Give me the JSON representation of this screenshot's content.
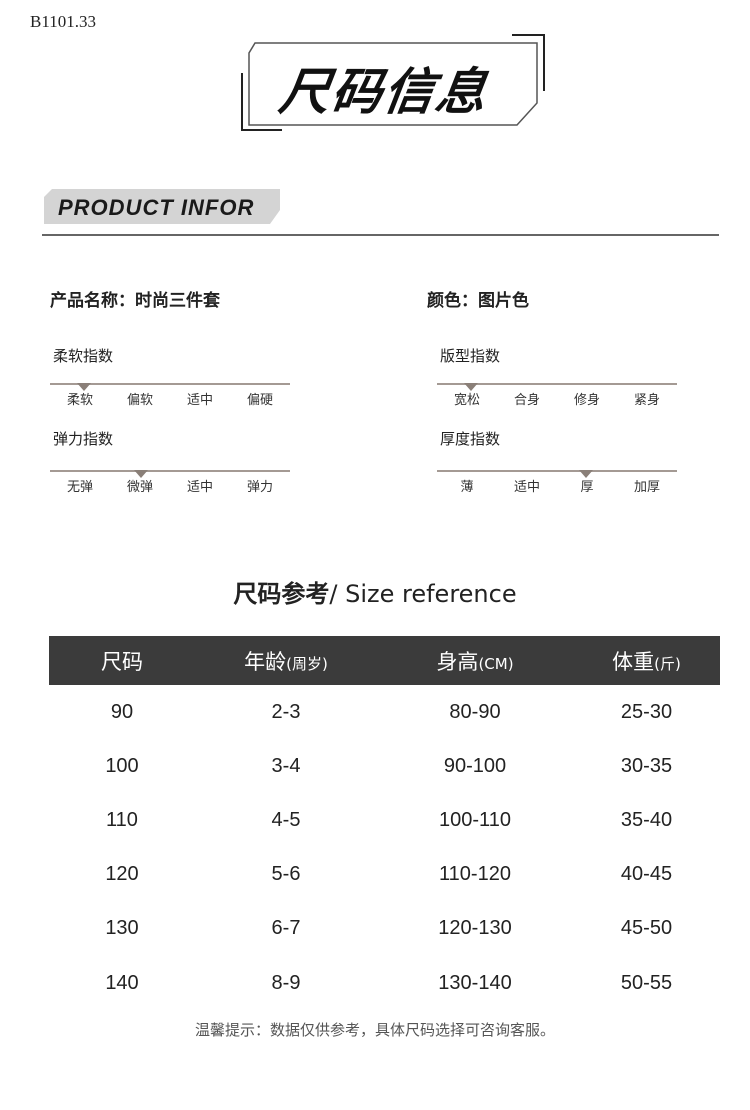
{
  "product_code": "B1101.33",
  "title": "尺码信息",
  "banner": "PRODUCT INFOR",
  "info": {
    "name_label": "产品名称：",
    "name_value": "时尚三件套",
    "color_label": "颜色：",
    "color_value": "图片色"
  },
  "indices": [
    {
      "title": "柔软指数",
      "options": [
        "柔软",
        "偏软",
        "适中",
        "偏硬"
      ],
      "selected": 0
    },
    {
      "title": "版型指数",
      "options": [
        "宽松",
        "合身",
        "修身",
        "紧身"
      ],
      "selected": 0
    },
    {
      "title": "弹力指数",
      "options": [
        "无弹",
        "微弹",
        "适中",
        "弹力"
      ],
      "selected": 1
    },
    {
      "title": "厚度指数",
      "options": [
        "薄",
        "适中",
        "厚",
        "加厚"
      ],
      "selected": 2
    }
  ],
  "size_reference": {
    "title_cn": "尺码参考",
    "title_sep": "/ ",
    "title_en": "Size reference"
  },
  "table": {
    "headers": [
      {
        "main": "尺码",
        "unit": ""
      },
      {
        "main": "年龄",
        "unit": "(周岁)"
      },
      {
        "main": "身高",
        "unit": "(CM)"
      },
      {
        "main": "体重",
        "unit": "(斤)"
      }
    ],
    "rows": [
      [
        "90",
        "2-3",
        "80-90",
        "25-30"
      ],
      [
        "100",
        "3-4",
        "90-100",
        "30-35"
      ],
      [
        "110",
        "4-5",
        "100-110",
        "35-40"
      ],
      [
        "120",
        "5-6",
        "110-120",
        "40-45"
      ],
      [
        "130",
        "6-7",
        "120-130",
        "45-50"
      ],
      [
        "140",
        "8-9",
        "130-140",
        "50-55"
      ]
    ]
  },
  "note": "温馨提示：数据仅供参考，具体尺码选择可咨询客服。",
  "colors": {
    "header_bg": "#3b3b3b",
    "banner_bg": "#d4d4d4",
    "marker": "#8a7f78"
  }
}
